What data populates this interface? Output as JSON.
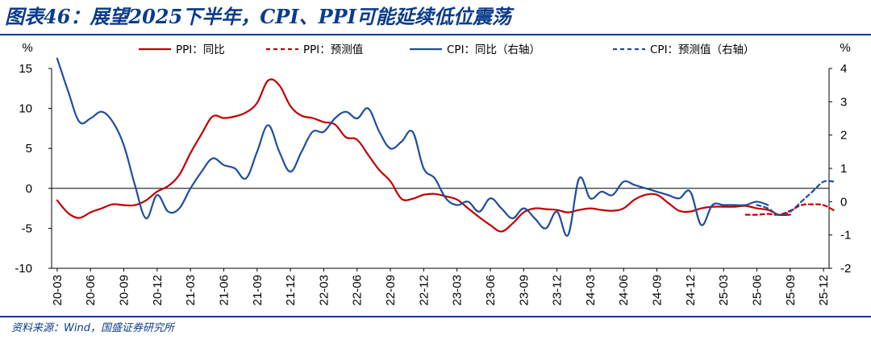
{
  "title": "图表46：展望2025下半年，CPI、PPI可能延续低位震荡",
  "source": "资料来源：Wind，国盛证券研究所",
  "colors": {
    "ppi": "#c00000",
    "cpi": "#1f4e9c",
    "title": "#0b3c8c",
    "zero": "#000000"
  },
  "chart_data": {
    "type": "line",
    "left_axis": {
      "label": "%",
      "ylim": [
        -10,
        15
      ],
      "ticks": [
        -10,
        -5,
        0,
        5,
        10,
        15
      ]
    },
    "right_axis": {
      "label": "%",
      "ylim": [
        -2,
        4
      ],
      "ticks": [
        -2,
        -1,
        0,
        1,
        2,
        3,
        4
      ]
    },
    "x_tick_labels": [
      "20-03",
      "20-06",
      "20-09",
      "20-12",
      "21-03",
      "21-06",
      "21-09",
      "21-12",
      "22-03",
      "22-06",
      "22-09",
      "22-12",
      "23-03",
      "23-06",
      "23-09",
      "23-12",
      "24-03",
      "24-06",
      "24-09",
      "24-12",
      "25-03",
      "25-06",
      "25-09",
      "25-12"
    ],
    "legend": [
      "PPI：同比",
      "PPI：预测值",
      "CPI：同比（右轴）",
      "CPI：预测值（右轴）"
    ],
    "series": [
      {
        "name": "PPI：同比",
        "axis": "left",
        "style": "solid",
        "start": "2020-03",
        "values": [
          -1.5,
          -3.1,
          -3.7,
          -3.0,
          -2.5,
          -2.0,
          -2.1,
          -2.1,
          -1.5,
          -0.4,
          0.3,
          1.7,
          4.4,
          6.8,
          9.0,
          8.8,
          9.0,
          9.5,
          10.7,
          13.5,
          12.9,
          10.3,
          9.1,
          8.8,
          8.3,
          8.0,
          6.4,
          6.1,
          4.2,
          2.3,
          0.9,
          -1.3,
          -1.3,
          -0.8,
          -0.7,
          -1.0,
          -1.4,
          -2.5,
          -3.6,
          -4.6,
          -5.4,
          -4.4,
          -3.0,
          -2.5,
          -2.6,
          -2.7,
          -3.0,
          -2.7,
          -2.5,
          -2.7,
          -2.8,
          -2.5,
          -1.4,
          -0.8,
          -0.8,
          -1.8,
          -2.8,
          -2.9,
          -2.5,
          -2.3,
          -2.3,
          -2.3,
          -2.2,
          -2.5,
          -2.7,
          -3.3,
          -3.3
        ]
      },
      {
        "name": "PPI：预测值",
        "axis": "left",
        "style": "dashed",
        "start": "2025-05",
        "values": [
          -3.3,
          -3.3,
          -3.2,
          -3.3,
          -2.8,
          -2.1,
          -2.0,
          -2.1,
          -2.8
        ]
      },
      {
        "name": "CPI：同比（右轴）",
        "axis": "right",
        "style": "solid",
        "start": "2020-03",
        "values": [
          4.3,
          3.3,
          2.4,
          2.5,
          2.7,
          2.4,
          1.7,
          0.5,
          -0.5,
          0.2,
          -0.3,
          -0.2,
          0.4,
          0.9,
          1.3,
          1.1,
          1.0,
          0.7,
          1.5,
          2.3,
          1.5,
          0.9,
          1.5,
          2.1,
          2.1,
          2.5,
          2.7,
          2.5,
          2.8,
          2.1,
          1.6,
          1.8,
          2.1,
          1.0,
          0.7,
          0.1,
          -0.1,
          0.0,
          -0.3,
          0.1,
          -0.2,
          -0.5,
          -0.2,
          -0.5,
          -0.8,
          -0.3,
          -1.0,
          0.7,
          0.1,
          0.3,
          0.2,
          0.6,
          0.5,
          0.4,
          0.3,
          0.2,
          0.1,
          0.3,
          -0.7,
          -0.1,
          -0.1,
          -0.1,
          -0.1,
          0.0,
          -0.1
        ]
      },
      {
        "name": "CPI：预测值（右轴）",
        "axis": "right",
        "style": "dashed",
        "start": "2025-06",
        "values": [
          -0.1,
          -0.2,
          -0.4,
          -0.3,
          0.0,
          0.3,
          0.6,
          0.6
        ]
      }
    ]
  }
}
